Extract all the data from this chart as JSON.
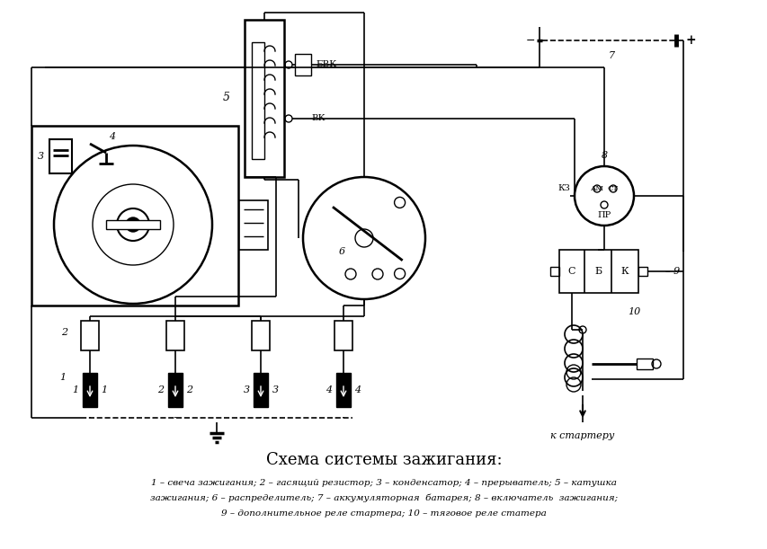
{
  "title": "Схема системы зажигания:",
  "legend_line1": "1 – свеча зажигания; 2 – гасящий резистор; 3 – конденсатор; 4 – прерыватель; 5 – катушка",
  "legend_line2": "зажигания; 6 – распределитель; 7 – аккумуляторная  батарея; 8 – включатель  зажигания;",
  "legend_line3": "9 – дополнительное реле стартера; 10 – тяговое реле статера",
  "bg_color": "#ffffff",
  "fg_color": "#000000",
  "line_color": "#000000",
  "figsize": [
    8.54,
    6.11
  ],
  "dpi": 100
}
